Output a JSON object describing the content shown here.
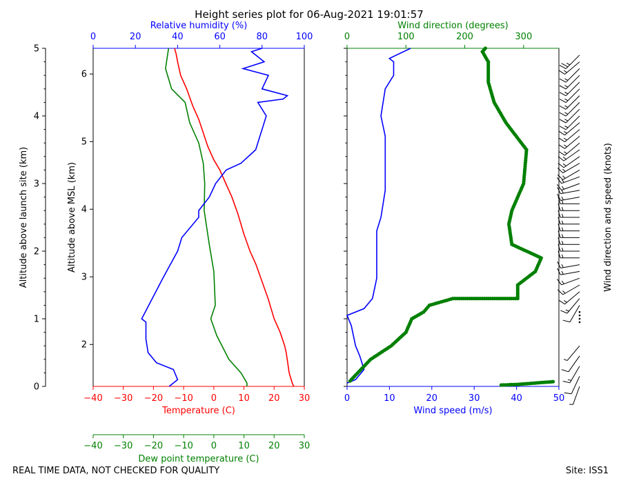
{
  "title": "Height series plot for 06-Aug-2021 19:01:57",
  "footer_left": "REAL TIME DATA, NOT CHECKED FOR QUALITY",
  "footer_right": "Site: ISS1",
  "colors": {
    "temperature": "#ff0000",
    "dewpoint": "#008000",
    "rh": "#0000ff",
    "wind_speed": "#0000ff",
    "wind_direction": "#008000",
    "axes": "#000000"
  },
  "chart_data": [
    {
      "type": "line",
      "panel": "thermo",
      "axes": {
        "left_outer": {
          "label": "Altitude above launch site (km)",
          "range": [
            0,
            5
          ],
          "ticks": [
            0,
            1,
            2,
            3,
            4,
            5
          ]
        },
        "left_inner": {
          "label": "Altitude above MSL (km)",
          "range": [
            1.38,
            6.38
          ],
          "ticks": [
            2,
            3,
            4,
            5,
            6
          ]
        },
        "bottom": {
          "label": "Temperature (C)",
          "range": [
            -40,
            30
          ],
          "ticks": [
            -40,
            -30,
            -20,
            -10,
            0,
            10,
            20,
            30
          ],
          "color": "#ff0000"
        },
        "bottom2": {
          "label": "Dew point temperature (C)",
          "range": [
            -40,
            30
          ],
          "ticks": [
            -40,
            -30,
            -20,
            -10,
            0,
            10,
            20,
            30
          ],
          "color": "#008000"
        },
        "top": {
          "label": "Relative humidity (%)",
          "range": [
            0,
            100
          ],
          "ticks": [
            0,
            20,
            40,
            60,
            80,
            100
          ],
          "color": "#0000ff"
        }
      },
      "series": [
        {
          "name": "Temperature",
          "axis": "bottom",
          "color": "#ff0000",
          "points": [
            [
              26.5,
              0
            ],
            [
              26,
              0.05
            ],
            [
              25,
              0.2
            ],
            [
              24.5,
              0.35
            ],
            [
              24,
              0.5
            ],
            [
              23.5,
              0.6
            ],
            [
              22,
              0.8
            ],
            [
              20,
              1.0
            ],
            [
              18,
              1.3
            ],
            [
              16,
              1.55
            ],
            [
              14,
              1.8
            ],
            [
              12,
              2.0
            ],
            [
              10,
              2.25
            ],
            [
              8,
              2.55
            ],
            [
              6,
              2.8
            ],
            [
              4,
              3.0
            ],
            [
              2,
              3.2
            ],
            [
              0,
              3.35
            ],
            [
              -2,
              3.55
            ],
            [
              -3.5,
              3.75
            ],
            [
              -5,
              3.95
            ],
            [
              -7,
              4.15
            ],
            [
              -9,
              4.4
            ],
            [
              -11,
              4.6
            ],
            [
              -12,
              4.8
            ],
            [
              -12.5,
              4.92
            ],
            [
              -13,
              5.0
            ]
          ]
        },
        {
          "name": "Dew point",
          "axis": "bottom",
          "color": "#008000",
          "points": [
            [
              -15,
              5.0
            ],
            [
              -16,
              4.7
            ],
            [
              -14,
              4.4
            ],
            [
              -9.5,
              4.2
            ],
            [
              -8,
              3.9
            ],
            [
              -5,
              3.6
            ],
            [
              -3.5,
              3.3
            ],
            [
              -3,
              3.0
            ],
            [
              -3.2,
              2.6
            ],
            [
              -1.5,
              2.1
            ],
            [
              0,
              1.7
            ],
            [
              0.5,
              1.2
            ],
            [
              -1,
              1.0
            ],
            [
              1,
              0.75
            ],
            [
              5,
              0.4
            ],
            [
              9,
              0.2
            ],
            [
              11,
              0.05
            ],
            [
              11,
              0
            ]
          ]
        },
        {
          "name": "Relative humidity",
          "axis": "top",
          "color": "#0000ff",
          "points": [
            [
              36,
              0
            ],
            [
              38,
              0.05
            ],
            [
              40,
              0.1
            ],
            [
              38,
              0.25
            ],
            [
              30,
              0.35
            ],
            [
              26,
              0.5
            ],
            [
              25,
              0.7
            ],
            [
              25,
              0.95
            ],
            [
              23,
              1.0
            ],
            [
              28,
              1.3
            ],
            [
              33,
              1.6
            ],
            [
              40,
              2.0
            ],
            [
              42,
              2.2
            ],
            [
              50,
              2.5
            ],
            [
              50,
              2.6
            ],
            [
              55,
              2.8
            ],
            [
              58,
              3.0
            ],
            [
              63,
              3.2
            ],
            [
              70,
              3.3
            ],
            [
              77,
              3.5
            ],
            [
              79,
              3.7
            ],
            [
              80,
              3.8
            ],
            [
              82,
              4.0
            ],
            [
              78,
              4.2
            ],
            [
              90,
              4.25
            ],
            [
              92,
              4.3
            ],
            [
              80,
              4.4
            ],
            [
              83,
              4.6
            ],
            [
              71,
              4.7
            ],
            [
              81,
              4.8
            ],
            [
              75,
              4.95
            ],
            [
              80,
              5.0
            ]
          ]
        }
      ]
    },
    {
      "type": "scatter",
      "panel": "wind",
      "axes": {
        "bottom": {
          "label": "Wind speed (m/s)",
          "range": [
            0,
            50
          ],
          "ticks": [
            0,
            10,
            20,
            30,
            40,
            50
          ],
          "color": "#0000ff"
        },
        "top": {
          "label": "Wind direction (degrees)",
          "range": [
            0,
            360
          ],
          "ticks": [
            0,
            100,
            200,
            300
          ],
          "color": "#008000"
        },
        "right": {
          "label": "Wind direction and speed (knots)"
        }
      },
      "series": [
        {
          "name": "Wind speed",
          "axis": "bottom",
          "color": "#0000ff",
          "style": "line",
          "points": [
            [
              0,
              0.05
            ],
            [
              2,
              0.1
            ],
            [
              4,
              0.25
            ],
            [
              3,
              0.45
            ],
            [
              2,
              0.6
            ],
            [
              1,
              0.9
            ],
            [
              0,
              1.05
            ],
            [
              4,
              1.15
            ],
            [
              6,
              1.3
            ],
            [
              7,
              1.6
            ],
            [
              7,
              2.0
            ],
            [
              7,
              2.3
            ],
            [
              8,
              2.5
            ],
            [
              9,
              2.9
            ],
            [
              9,
              3.3
            ],
            [
              9,
              3.7
            ],
            [
              8,
              4.0
            ],
            [
              9,
              4.4
            ],
            [
              11,
              4.6
            ],
            [
              11,
              4.8
            ],
            [
              10,
              4.85
            ],
            [
              15,
              5.0
            ]
          ]
        },
        {
          "name": "Wind direction",
          "axis": "top",
          "color": "#008000",
          "style": "dots",
          "points": [
            [
              5,
              0.08
            ],
            [
              40,
              0.4
            ],
            [
              75,
              0.6
            ],
            [
              100,
              0.8
            ],
            [
              110,
              1.0
            ],
            [
              130,
              1.1
            ],
            [
              140,
              1.2
            ],
            [
              180,
              1.3
            ],
            [
              290,
              1.3
            ],
            [
              290,
              1.5
            ],
            [
              320,
              1.7
            ],
            [
              330,
              1.9
            ],
            [
              280,
              2.1
            ],
            [
              275,
              2.4
            ],
            [
              280,
              2.6
            ],
            [
              300,
              3.0
            ],
            [
              305,
              3.5
            ],
            [
              270,
              3.9
            ],
            [
              250,
              4.2
            ],
            [
              240,
              4.5
            ],
            [
              240,
              4.8
            ],
            [
              230,
              4.95
            ],
            [
              235,
              5.0
            ]
          ]
        },
        {
          "name": "Wind direction surface",
          "axis": "top",
          "color": "#008000",
          "style": "dots",
          "points": [
            [
              262,
              0.02
            ],
            [
              290,
              0.03
            ],
            [
              320,
              0.05
            ],
            [
              350,
              0.07
            ]
          ]
        }
      ],
      "barbs": {
        "note": "altitude, direction (deg), speed (knots)",
        "points": [
          [
            0.0,
            200,
            5
          ],
          [
            0.15,
            205,
            10
          ],
          [
            0.3,
            210,
            15
          ],
          [
            0.45,
            215,
            10
          ],
          [
            0.6,
            220,
            5
          ],
          [
            0.95,
            0,
            0
          ],
          [
            1.0,
            0,
            0
          ],
          [
            1.05,
            0,
            0
          ],
          [
            1.1,
            0,
            0
          ],
          [
            1.2,
            210,
            10
          ],
          [
            1.3,
            220,
            15
          ],
          [
            1.4,
            230,
            15
          ],
          [
            1.5,
            240,
            15
          ],
          [
            1.6,
            250,
            15
          ],
          [
            1.7,
            260,
            15
          ],
          [
            1.8,
            260,
            15
          ],
          [
            1.9,
            270,
            15
          ],
          [
            2.0,
            270,
            15
          ],
          [
            2.1,
            270,
            15
          ],
          [
            2.2,
            270,
            15
          ],
          [
            2.3,
            270,
            15
          ],
          [
            2.4,
            270,
            15
          ],
          [
            2.5,
            270,
            15
          ],
          [
            2.6,
            270,
            15
          ],
          [
            2.7,
            270,
            15
          ],
          [
            2.8,
            260,
            15
          ],
          [
            2.9,
            260,
            15
          ],
          [
            3.0,
            250,
            15
          ],
          [
            3.1,
            250,
            15
          ],
          [
            3.2,
            240,
            15
          ],
          [
            3.3,
            240,
            15
          ],
          [
            3.4,
            235,
            15
          ],
          [
            3.5,
            235,
            15
          ],
          [
            3.6,
            230,
            15
          ],
          [
            3.7,
            230,
            15
          ],
          [
            3.8,
            230,
            15
          ],
          [
            3.9,
            230,
            15
          ],
          [
            4.0,
            225,
            15
          ],
          [
            4.1,
            225,
            15
          ],
          [
            4.2,
            225,
            15
          ],
          [
            4.3,
            225,
            15
          ],
          [
            4.4,
            225,
            15
          ],
          [
            4.5,
            225,
            15
          ],
          [
            4.6,
            225,
            15
          ],
          [
            4.7,
            225,
            15
          ],
          [
            4.8,
            230,
            15
          ],
          [
            4.9,
            225,
            25
          ]
        ]
      }
    }
  ]
}
